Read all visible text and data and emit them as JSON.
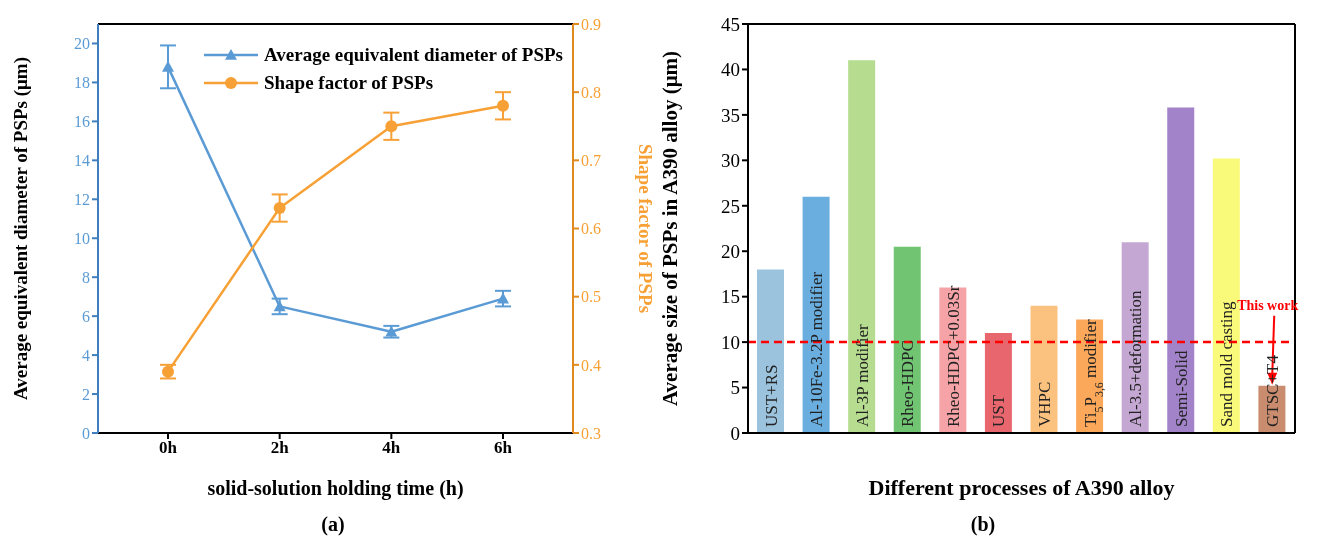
{
  "chart_data": [
    {
      "type": "line",
      "categories": [
        "0h",
        "2h",
        "4h",
        "6h"
      ],
      "xlabel": "solid-solution holding time (h)",
      "ylabel": "Average equivalent diameter of PSPs (μm)",
      "y2label": "Shape factor of PSPs",
      "ylim": [
        0,
        21
      ],
      "yticks": [
        0,
        2,
        4,
        6,
        8,
        10,
        12,
        14,
        16,
        18,
        20
      ],
      "y2lim": [
        0.3,
        0.9
      ],
      "y2ticks": [
        0.3,
        0.4,
        0.5,
        0.6,
        0.7,
        0.8,
        0.9
      ],
      "legend": "top right",
      "annotations": [
        "(a)"
      ],
      "series": [
        {
          "name": "Average equivalent diameter of PSPs",
          "color": "#5b9bd5",
          "marker": "triangle",
          "values": [
            18.8,
            6.5,
            5.2,
            6.9
          ],
          "errors": [
            1.1,
            0.4,
            0.3,
            0.4
          ]
        },
        {
          "name": "Shape factor of PSPs",
          "color": "#f7a035",
          "marker": "circle",
          "axis": "y2",
          "values": [
            0.39,
            0.63,
            0.75,
            0.78
          ],
          "errors": [
            0.01,
            0.02,
            0.02,
            0.02
          ]
        }
      ]
    },
    {
      "type": "bar",
      "categories": [
        "UST+RS",
        "Al-10Fe-3.2P modifier",
        "Al-3P modifier",
        "Rheo-HDPC",
        "Rheo-HDPC+0.03Sr",
        "UST",
        "VHPC",
        "Ti$_{5}$P$_{3,6}$ modifier",
        "Al-3.5+deformation",
        "Semi-Solid",
        "Sand mold casting",
        "GTSC+T4"
      ],
      "values": [
        18,
        26,
        41,
        20.5,
        16,
        11,
        14,
        12.5,
        21,
        35.8,
        30.2,
        5.2
      ],
      "colors": [
        "#9cc3dd",
        "#6aaee0",
        "#b5dc8f",
        "#70c472",
        "#f5a3a6",
        "#e8676e",
        "#fbc27f",
        "#fba85a",
        "#c4a8d3",
        "#a283c9",
        "#fafa7a",
        "#c98c6e"
      ],
      "xlabel": "Different processes of A390 alloy",
      "ylabel": "Average size of PSPs in A390 alloy (μm)",
      "ylim": [
        0,
        45
      ],
      "yticks": [
        0,
        5,
        10,
        15,
        20,
        25,
        30,
        35,
        40,
        45
      ],
      "ref_lines": [
        {
          "axis": "y",
          "value": 10,
          "color": "#ff0000",
          "line_style": "dashed"
        }
      ],
      "annotations": [
        "This work",
        "(b)"
      ]
    }
  ]
}
